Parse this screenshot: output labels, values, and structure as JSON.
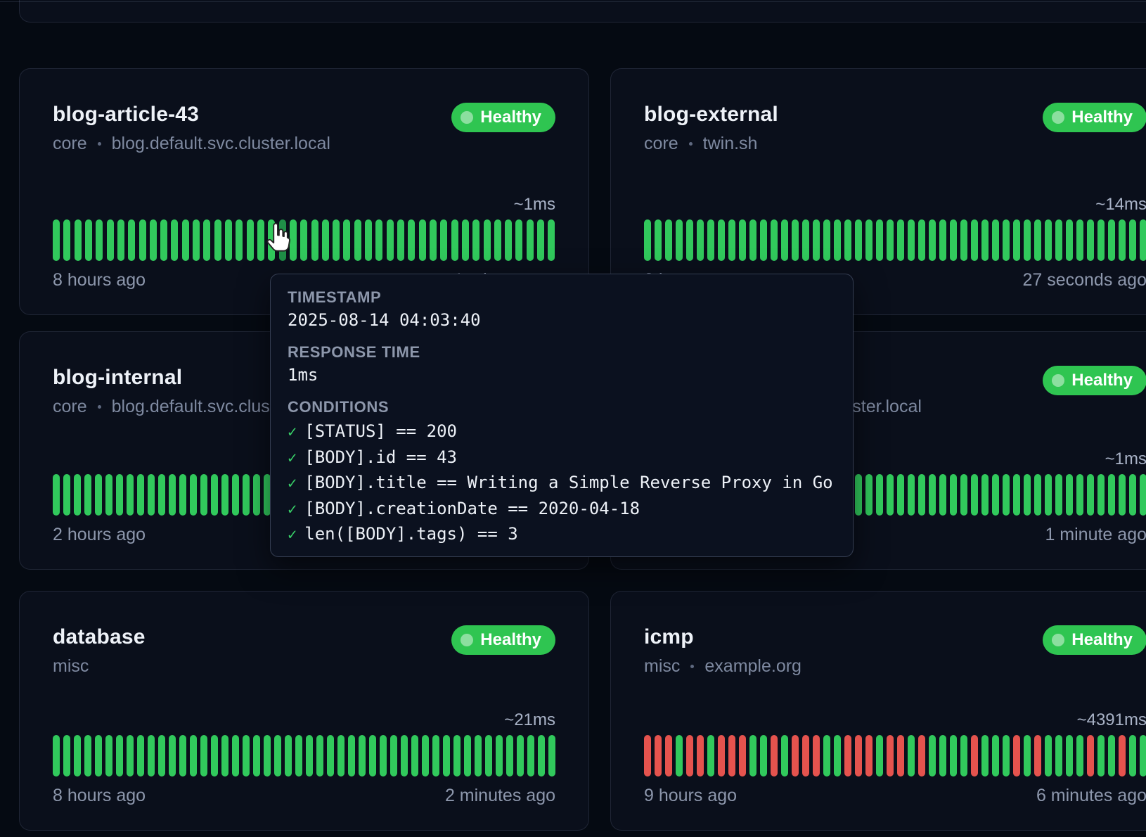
{
  "colors": {
    "bar-green": "#31c95c",
    "bar-red": "#e5534e",
    "bar-hover": "#1f8f47",
    "badge-green": "#2fc551"
  },
  "cards": [
    {
      "title": "blog-article-43",
      "group": "core",
      "host": "blog.default.svc.cluster.local",
      "status": "Healthy",
      "avg_response": "~1ms",
      "oldest": "8 hours ago",
      "latest": "1 minute ago",
      "bars": "GGGGGGGGGGGGGGGGGGGGGHGGGGGGGGGGGGGGGGGGGGGGGGG"
    },
    {
      "title": "blog-external",
      "group": "core",
      "host": "twin.sh",
      "status": "Healthy",
      "avg_response": "~14ms",
      "oldest": "8 hours ago",
      "latest": "27 seconds ago",
      "bars": "GGGGGGGGGGGGGGGGGGGGGGGGGGGGGGGGGGGGGGGGGGGGGGGG"
    },
    {
      "title": "blog-internal",
      "group": "core",
      "host": "blog.default.svc.cluster.local",
      "status": "Healthy",
      "avg_response": "",
      "oldest": "2 hours ago",
      "latest": "",
      "bars": "GGGGGGGGGGGGGGGGGGGGGGGGGGGGGGGGGGGGGGGGGGGGGGGG"
    },
    {
      "title": "",
      "group": "core",
      "host": "blog.default.svc.cluster.local",
      "status": "Healthy",
      "avg_response": "~1ms",
      "oldest": "",
      "latest": "1 minute ago",
      "bars": "GGGGGGGGGGGGGGGGGGGGGGGGGGGGGGGGGGGGGGGGGGGGGGGG"
    },
    {
      "title": "database",
      "group": "misc",
      "host": "",
      "status": "Healthy",
      "avg_response": "~21ms",
      "oldest": "8 hours ago",
      "latest": "2 minutes ago",
      "bars": "GGGGGGGGGGGGGGGGGGGGGGGGGGGGGGGGGGGGGGGGGGGGGGGG"
    },
    {
      "title": "icmp",
      "group": "misc",
      "host": "example.org",
      "status": "Healthy",
      "avg_response": "~4391ms",
      "oldest": "9 hours ago",
      "latest": "6 minutes ago",
      "bars": "RRRGRRGRRRGGRGRRRGGRRRGRRGRGGGGRGGGRGRGGGGRGGRGG"
    }
  ],
  "tooltip": {
    "timestamp_label": "TIMESTAMP",
    "timestamp_value": "2025-08-14 04:03:40",
    "response_time_label": "RESPONSE TIME",
    "response_time_value": "1ms",
    "conditions_label": "CONDITIONS",
    "check_glyph": "✓",
    "conditions": [
      "[STATUS] == 200",
      "[BODY].id == 43",
      "[BODY].title == Writing a Simple Reverse Proxy in Go",
      "[BODY].creationDate == 2020-04-18",
      "len([BODY].tags) == 3"
    ]
  }
}
